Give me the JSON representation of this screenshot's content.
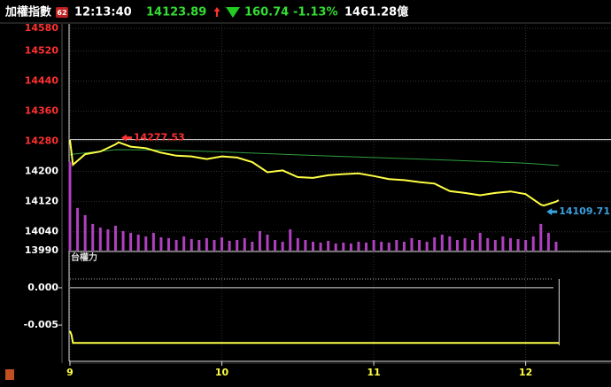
{
  "header": {
    "title": "加權指數",
    "badge": 62,
    "time": "12:13:40",
    "price": 14123.89,
    "change": 160.74,
    "change_pct": "-1.13%",
    "turnover": "1461.28億"
  },
  "chart_data": [
    {
      "type": "line",
      "xlim": [
        9,
        12.55
      ],
      "xticks": [
        9,
        10,
        11,
        12
      ],
      "ylim": [
        13990,
        14580
      ],
      "yticks": [
        14580,
        14520,
        14440,
        14360,
        14280,
        14200,
        14120,
        14040,
        13990
      ],
      "ytick_colors": [
        "#ff3030",
        "#ff3030",
        "#ff3030",
        "#ff3030",
        "#ff3030",
        "#ffffff",
        "#ffffff",
        "#ffffff",
        "#ffffff"
      ],
      "grid": true,
      "reference": 14284.63,
      "series": [
        {
          "color": "#ffff44",
          "x": [
            9,
            9.02,
            9.1,
            9.2,
            9.3,
            9.32,
            9.4,
            9.5,
            9.6,
            9.7,
            9.8,
            9.9,
            10,
            10.1,
            10.2,
            10.3,
            10.4,
            10.5,
            10.6,
            10.7,
            10.8,
            10.9,
            11,
            11.1,
            11.2,
            11.3,
            11.4,
            11.5,
            11.6,
            11.7,
            11.8,
            11.9,
            12,
            12.1,
            12.12,
            12.2,
            12.217
          ],
          "values": [
            14284,
            14218,
            14246,
            14253,
            14272,
            14277.53,
            14266,
            14262,
            14250,
            14242,
            14240,
            14233,
            14240,
            14237,
            14225,
            14198,
            14203,
            14185,
            14183,
            14190,
            14193,
            14195,
            14188,
            14180,
            14177,
            14172,
            14168,
            14148,
            14143,
            14137,
            14143,
            14147,
            14140,
            14112,
            14109.71,
            14120,
            14123.89
          ]
        },
        {
          "color": "#2e9e3e",
          "x": [
            9,
            9.3,
            9.6,
            10,
            10.5,
            11,
            11.5,
            12,
            12.217
          ],
          "values": [
            14245,
            14258,
            14257,
            14252,
            14244,
            14237,
            14230,
            14222,
            14216
          ]
        }
      ],
      "volume": {
        "color": "#b040c0",
        "ylim": [
          0,
          250
        ],
        "x": [
          9,
          9.05,
          9.1,
          9.15,
          9.2,
          9.25,
          9.3,
          9.35,
          9.4,
          9.45,
          9.5,
          9.55,
          9.6,
          9.65,
          9.7,
          9.75,
          9.8,
          9.85,
          9.9,
          9.95,
          10,
          10.05,
          10.1,
          10.15,
          10.2,
          10.25,
          10.3,
          10.35,
          10.4,
          10.45,
          10.5,
          10.55,
          10.6,
          10.65,
          10.7,
          10.75,
          10.8,
          10.85,
          10.9,
          10.95,
          11,
          11.05,
          11.1,
          11.15,
          11.2,
          11.25,
          11.3,
          11.35,
          11.4,
          11.45,
          11.5,
          11.55,
          11.6,
          11.65,
          11.7,
          11.75,
          11.8,
          11.85,
          11.9,
          11.95,
          12,
          12.05,
          12.1,
          12.15,
          12.2
        ],
        "values": [
          100,
          48,
          40,
          30,
          26,
          24,
          28,
          22,
          20,
          18,
          16,
          20,
          15,
          14,
          12,
          16,
          13,
          12,
          14,
          12,
          15,
          11,
          12,
          14,
          10,
          22,
          18,
          12,
          10,
          24,
          14,
          12,
          10,
          9,
          11,
          8,
          9,
          8,
          10,
          9,
          12,
          10,
          9,
          12,
          10,
          14,
          12,
          10,
          15,
          18,
          16,
          12,
          14,
          12,
          20,
          14,
          12,
          16,
          14,
          13,
          12,
          16,
          30,
          20,
          10
        ]
      },
      "annotations": [
        {
          "x": 9.32,
          "y": 14277.53,
          "color": "#ff3030"
        },
        {
          "x": 12.12,
          "y": 14109.71,
          "color": "#3aa0e0"
        }
      ]
    },
    {
      "type": "line",
      "title": "台權力",
      "ylim": [
        -0.0095,
        0.0045
      ],
      "yticks": [
        {
          "value": 0,
          "label": "0.000"
        },
        {
          "value": -0.005,
          "label": "-0.005"
        }
      ],
      "series": [
        {
          "color": "#ffff44",
          "x": [
            9,
            9.01,
            9.02,
            12.22
          ],
          "values": [
            -0.0058,
            -0.0063,
            -0.0074,
            -0.0074
          ]
        }
      ]
    }
  ]
}
